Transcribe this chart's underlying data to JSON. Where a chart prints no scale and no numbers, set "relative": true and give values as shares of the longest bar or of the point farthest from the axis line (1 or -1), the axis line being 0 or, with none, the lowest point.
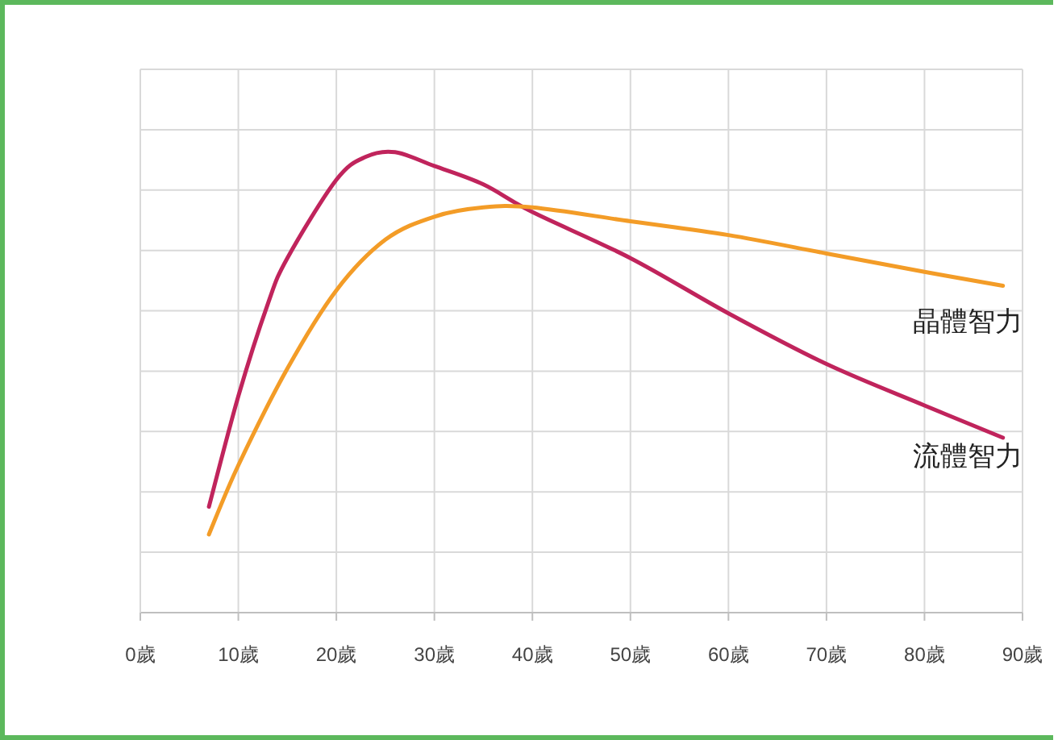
{
  "chart_data": {
    "type": "line",
    "relative": true,
    "grid": true,
    "marker": "none",
    "line_style": "solid",
    "xlim": [
      0,
      90
    ],
    "xticks": [
      {
        "value": 0,
        "label": "0歲"
      },
      {
        "value": 10,
        "label": "10歲"
      },
      {
        "value": 20,
        "label": "20歲"
      },
      {
        "value": 30,
        "label": "30歲"
      },
      {
        "value": 40,
        "label": "40歲"
      },
      {
        "value": 50,
        "label": "50歲"
      },
      {
        "value": 60,
        "label": "60歲"
      },
      {
        "value": 70,
        "label": "70歲"
      },
      {
        "value": 80,
        "label": "80歲"
      },
      {
        "value": 90,
        "label": "90歲"
      }
    ],
    "series": [
      {
        "name": "流體智力",
        "color": "#c0245c",
        "x": [
          7,
          10,
          13,
          15,
          20,
          23,
          26,
          30,
          35,
          40,
          50,
          60,
          70,
          80,
          88
        ],
        "values": [
          0.23,
          0.47,
          0.67,
          0.77,
          0.94,
          0.99,
          1,
          0.97,
          0.93,
          0.87,
          0.77,
          0.65,
          0.54,
          0.45,
          0.38
        ]
      },
      {
        "name": "晶體智力",
        "color": "#f39c27",
        "x": [
          7,
          10,
          15,
          20,
          25,
          30,
          35,
          40,
          50,
          60,
          70,
          80,
          88
        ],
        "values": [
          0.17,
          0.32,
          0.53,
          0.7,
          0.81,
          0.86,
          0.88,
          0.88,
          0.85,
          0.82,
          0.78,
          0.74,
          0.71
        ]
      }
    ]
  }
}
